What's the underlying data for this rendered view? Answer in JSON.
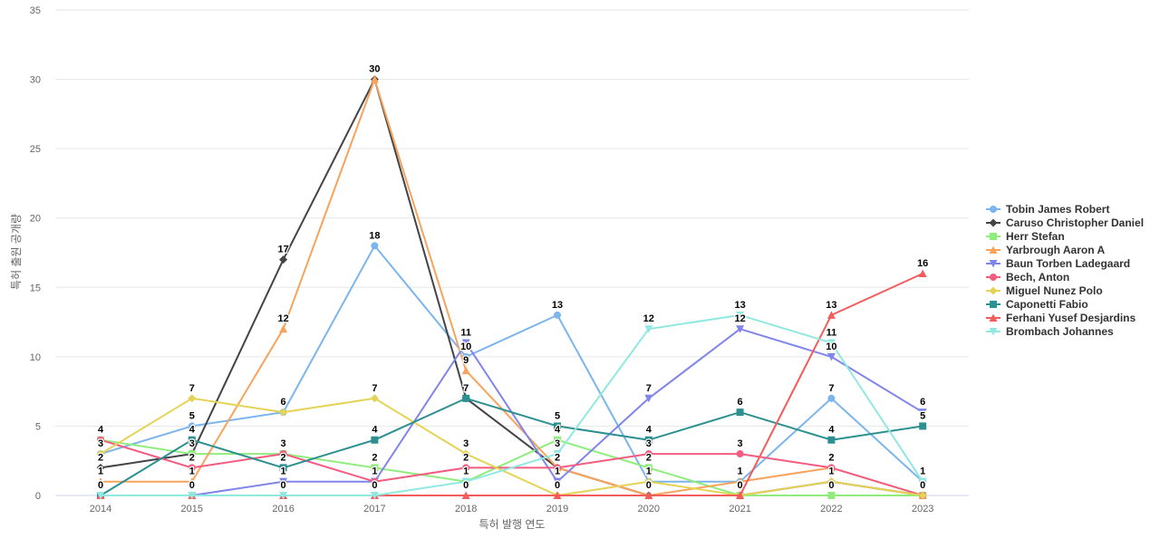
{
  "chart_data": {
    "type": "line",
    "title": "",
    "xlabel": "특허 발행 연도",
    "ylabel": "특허 출원 공개량",
    "categories": [
      "2014",
      "2015",
      "2016",
      "2017",
      "2018",
      "2019",
      "2020",
      "2021",
      "2022",
      "2023"
    ],
    "ylim": [
      0,
      35
    ],
    "yticks": [
      0,
      5,
      10,
      15,
      20,
      25,
      30,
      35
    ],
    "grid": true,
    "legend_position": "right",
    "data_labels": true,
    "series": [
      {
        "name": "Tobin James Robert",
        "color": "#7cb5ec",
        "marker": "circle",
        "values": [
          3,
          5,
          6,
          18,
          10,
          13,
          1,
          1,
          7,
          1
        ]
      },
      {
        "name": "Caruso Christopher Daniel",
        "color": "#434348",
        "marker": "diamond",
        "values": [
          2,
          3,
          17,
          30,
          7,
          2,
          0,
          0,
          1,
          0
        ]
      },
      {
        "name": "Herr Stefan",
        "color": "#90ed7d",
        "marker": "square",
        "values": [
          4,
          3,
          3,
          2,
          1,
          4,
          2,
          0,
          0,
          0
        ]
      },
      {
        "name": "Yarbrough Aaron A",
        "color": "#f7a35c",
        "marker": "triangle",
        "values": [
          1,
          1,
          12,
          30,
          9,
          2,
          0,
          1,
          2,
          0
        ]
      },
      {
        "name": "Baun Torben Ladegaard",
        "color": "#8085e9",
        "marker": "triangle-down",
        "values": [
          0,
          0,
          1,
          1,
          11,
          1,
          7,
          12,
          10,
          6
        ]
      },
      {
        "name": "Bech, Anton",
        "color": "#f15c80",
        "marker": "circle",
        "values": [
          4,
          2,
          3,
          1,
          2,
          2,
          3,
          3,
          2,
          0
        ]
      },
      {
        "name": "Miguel Nunez Polo",
        "color": "#e4d354",
        "marker": "diamond",
        "values": [
          3,
          7,
          6,
          7,
          3,
          0,
          1,
          0,
          1,
          0
        ]
      },
      {
        "name": "Caponetti Fabio",
        "color": "#2b908f",
        "marker": "square",
        "values": [
          0,
          4,
          2,
          4,
          7,
          5,
          4,
          6,
          4,
          5
        ]
      },
      {
        "name": "Ferhani Yusef Desjardins",
        "color": "#f45b5b",
        "marker": "triangle",
        "values": [
          0,
          0,
          0,
          0,
          0,
          0,
          0,
          0,
          13,
          16
        ]
      },
      {
        "name": "Brombach Johannes",
        "color": "#91e8e1",
        "marker": "triangle-down",
        "values": [
          0,
          0,
          0,
          0,
          1,
          3,
          12,
          13,
          11,
          1
        ]
      }
    ]
  }
}
